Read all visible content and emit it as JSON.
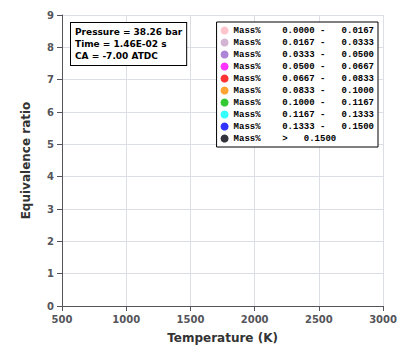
{
  "chart_data": {
    "type": "scatter",
    "xlabel": "Temperature (K)",
    "ylabel": "Equivalence ratio",
    "xlim": [
      500,
      3000
    ],
    "ylim": [
      0,
      9
    ],
    "xticks": [
      500,
      1000,
      1500,
      2000,
      2500,
      3000
    ],
    "yticks": [
      0,
      1,
      2,
      3,
      4,
      5,
      6,
      7,
      8,
      9
    ],
    "annotation": [
      "Pressure = 38.26 bar",
      "Time = 1.46E-02 s",
      "CA = -7.00 ATDC"
    ],
    "x": [],
    "series": [
      {
        "name": "Mass%    0.0000 -   0.0167",
        "color": "#FFB6C1",
        "values": []
      },
      {
        "name": "Mass%    0.0167 -   0.0333",
        "color": "#C8A2C8",
        "values": []
      },
      {
        "name": "Mass%    0.0333 -   0.0500",
        "color": "#9966CC",
        "values": []
      },
      {
        "name": "Mass%    0.0500 -   0.0667",
        "color": "#FF00FF",
        "values": []
      },
      {
        "name": "Mass%    0.0667 -   0.0833",
        "color": "#FF0000",
        "values": []
      },
      {
        "name": "Mass%    0.0833 -   0.1000",
        "color": "#FF8C00",
        "values": []
      },
      {
        "name": "Mass%    0.1000 -   0.1167",
        "color": "#00BB00",
        "values": []
      },
      {
        "name": "Mass%    0.1167 -   0.1333",
        "color": "#00FFFF",
        "values": []
      },
      {
        "name": "Mass%    0.1333 -   0.1500",
        "color": "#0000FF",
        "values": []
      },
      {
        "name": "Mass%    >   0.1500",
        "color": "#00000A",
        "values": []
      }
    ],
    "grid": true,
    "legend": "upper right"
  }
}
